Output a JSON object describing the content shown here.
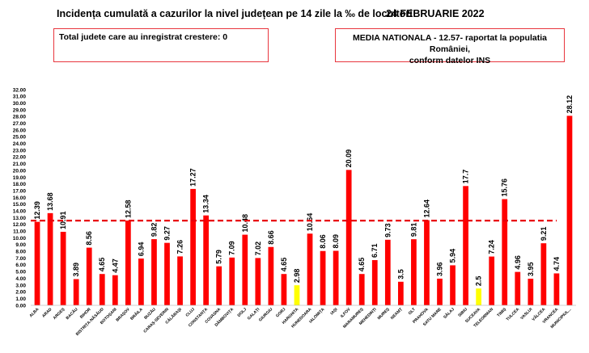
{
  "header": {
    "title": "Incidența cumulată a cazurilor la nivel județean pe 14 zile la ‰ de locuitori",
    "date": "24 FEBRUARIE 2022"
  },
  "info": {
    "total_label": "Total judete care au inregistrat crestere: 0",
    "national_line1": "MEDIA NATIONALA - 12.57-  raportat la populatia României,",
    "national_line2": "conform datelor INS"
  },
  "chart_data": {
    "type": "bar",
    "categories": [
      "ALBA",
      "ARAD",
      "ARGEȘ",
      "BACĂU",
      "BIHOR",
      "BISTRIȚA-NĂSĂUD",
      "BOTOȘANI",
      "BRAȘOV",
      "BRĂILA",
      "BUZĂU",
      "CARAȘ-SEVERIN",
      "CĂLĂRAȘI",
      "CLUJ",
      "CONSTANȚA",
      "COVASNA",
      "DÂMBOVIȚA",
      "DOLJ",
      "GALAȚI",
      "GIURGIU",
      "GORJ",
      "HARGHITA",
      "HUNEDOARA",
      "IALOMIȚA",
      "IAȘI",
      "ILFOV",
      "MARAMUREȘ",
      "MEHEDINȚI",
      "MUREȘ",
      "NEAMȚ",
      "OLT",
      "PRAHOVA",
      "SATU MARE",
      "SĂLAJ",
      "SIBIU",
      "SUCEAVA",
      "TELEORMAN",
      "TIMIȘ",
      "TULCEA",
      "VASLUI",
      "VÂLCEA",
      "VRANCEA",
      "MUNICIPIUL..."
    ],
    "values": [
      12.39,
      13.68,
      10.91,
      3.89,
      8.56,
      4.65,
      4.47,
      12.58,
      6.94,
      9.82,
      9.27,
      7.26,
      17.27,
      13.34,
      5.79,
      7.09,
      10.48,
      7.02,
      8.66,
      4.65,
      2.98,
      10.64,
      8.06,
      8.09,
      20.09,
      4.65,
      6.71,
      9.73,
      3.5,
      9.81,
      12.64,
      3.96,
      5.94,
      17.7,
      2.5,
      7.24,
      15.76,
      4.96,
      3.95,
      9.21,
      4.74,
      28.12
    ],
    "value_labels": [
      "12.39",
      "13.68",
      "10.91",
      "3.89",
      "8.56",
      "4.65",
      "4.47",
      "12.58",
      "6.94",
      "9.82",
      "9.27",
      "7.26",
      "17.27",
      "13.34",
      "5.79",
      "7.09",
      "10.48",
      "7.02",
      "8.66",
      "4.65",
      "2.98",
      "10.64",
      "8.06",
      "8.09",
      "20.09",
      "4.65",
      "6.71",
      "9.73",
      "3.5",
      "9.81",
      "12.64",
      "3.96",
      "5.94",
      "17.7",
      "2.5",
      "7.24",
      "15.76",
      "4.96",
      "3.95",
      "9.21",
      "4.74",
      "28.12"
    ],
    "highlighted": [
      "HARGHITA",
      "SUCEAVA"
    ],
    "reference_line": 12.57,
    "ylim": [
      0,
      32
    ],
    "yticks": [
      "0.00",
      "1.00",
      "2.00",
      "3.00",
      "4.00",
      "5.00",
      "6.00",
      "7.00",
      "8.00",
      "9.00",
      "10.00",
      "11.00",
      "12.00",
      "13.00",
      "14.00",
      "15.00",
      "16.00",
      "17.00",
      "18.00",
      "19.00",
      "20.00",
      "21.00",
      "22.00",
      "23.00",
      "24.00",
      "25.00",
      "26.00",
      "27.00",
      "28.00",
      "29.00",
      "30.00",
      "31.00",
      "32.00"
    ],
    "colors": {
      "bar": "#ff0000",
      "highlight": "#ffff00",
      "reference": "#e8000b"
    },
    "grid": false,
    "legend": "none"
  }
}
